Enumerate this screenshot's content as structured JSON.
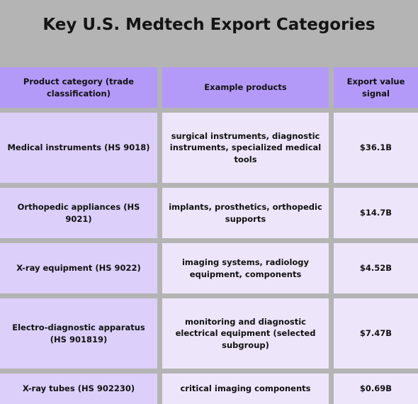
{
  "title": "Key U.S. Medtech Export Categories",
  "table": {
    "headers": [
      "Product category (trade classification)",
      "Example products",
      "Export value signal"
    ],
    "rows": [
      {
        "category": "Medical instruments (HS 9018)",
        "examples": "surgical instruments, diagnostic instruments, specialized medical tools",
        "value": "$36.1B"
      },
      {
        "category": "Orthopedic appliances (HS 9021)",
        "examples": "implants, prosthetics, orthopedic supports",
        "value": "$14.7B"
      },
      {
        "category": "X-ray equipment (HS 9022)",
        "examples": "imaging systems, radiology equipment, components",
        "value": "$4.52B"
      },
      {
        "category": "Electro-diagnostic apparatus (HS 901819)",
        "examples": "monitoring and diagnostic electrical equipment (selected subgroup)",
        "value": "$7.47B"
      },
      {
        "category": "X-ray tubes (HS 902230)",
        "examples": "critical imaging components",
        "value": "$0.69B"
      }
    ]
  },
  "colors": {
    "background": "#b4b4b4",
    "header_fill": "#b49af8",
    "first_column_fill": "#dccff9",
    "body_fill": "#ede6fb"
  }
}
